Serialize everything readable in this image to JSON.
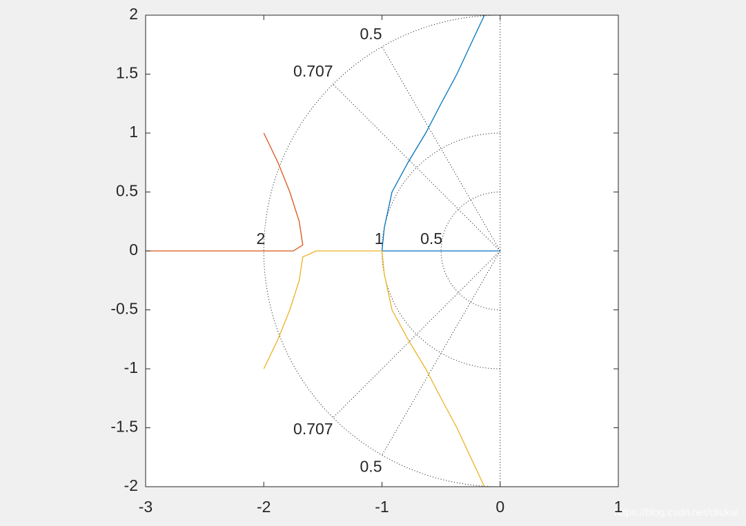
{
  "chart_data": {
    "type": "line",
    "xlim": [
      -3,
      1
    ],
    "ylim": [
      -2,
      2
    ],
    "xticks": [
      -3,
      -2,
      -1,
      0,
      1
    ],
    "yticks": [
      -2,
      -1.5,
      -1,
      -0.5,
      0,
      0.5,
      1,
      1.5,
      2
    ],
    "sgrid": {
      "zeta": [
        0.5,
        0.707
      ],
      "wn": [
        0.5,
        1,
        2
      ]
    },
    "series": [
      {
        "color": "#0072bd",
        "x": [
          0,
          -1,
          -0.98,
          -0.915,
          -0.78,
          -0.63,
          -0.5,
          -0.366,
          -0.25,
          -0.133
        ],
        "values": [
          0,
          0,
          0.2,
          0.5,
          0.75,
          1,
          1.25,
          1.5,
          1.75,
          2
        ]
      },
      {
        "color": "#d95319",
        "x": [
          -3,
          -1.75,
          -1.67,
          -1.7,
          -1.78,
          -1.88,
          -2
        ],
        "values": [
          0,
          0,
          0.05,
          0.25,
          0.5,
          0.75,
          1
        ]
      },
      {
        "color": "#edb120",
        "x": [
          -0.133,
          -0.25,
          -0.366,
          -0.5,
          -0.63,
          -0.78,
          -0.915,
          -0.98,
          -1,
          -1.56,
          -1.62,
          -1.67,
          -1.7,
          -1.78,
          -1.88,
          -2
        ],
        "values": [
          -2,
          -1.75,
          -1.5,
          -1.25,
          -1,
          -0.75,
          -0.5,
          -0.2,
          0,
          0,
          -0.03,
          -0.05,
          -0.25,
          -0.5,
          -0.75,
          -1
        ]
      }
    ],
    "watermark": "https://blog.csdn.net/cliukai"
  }
}
